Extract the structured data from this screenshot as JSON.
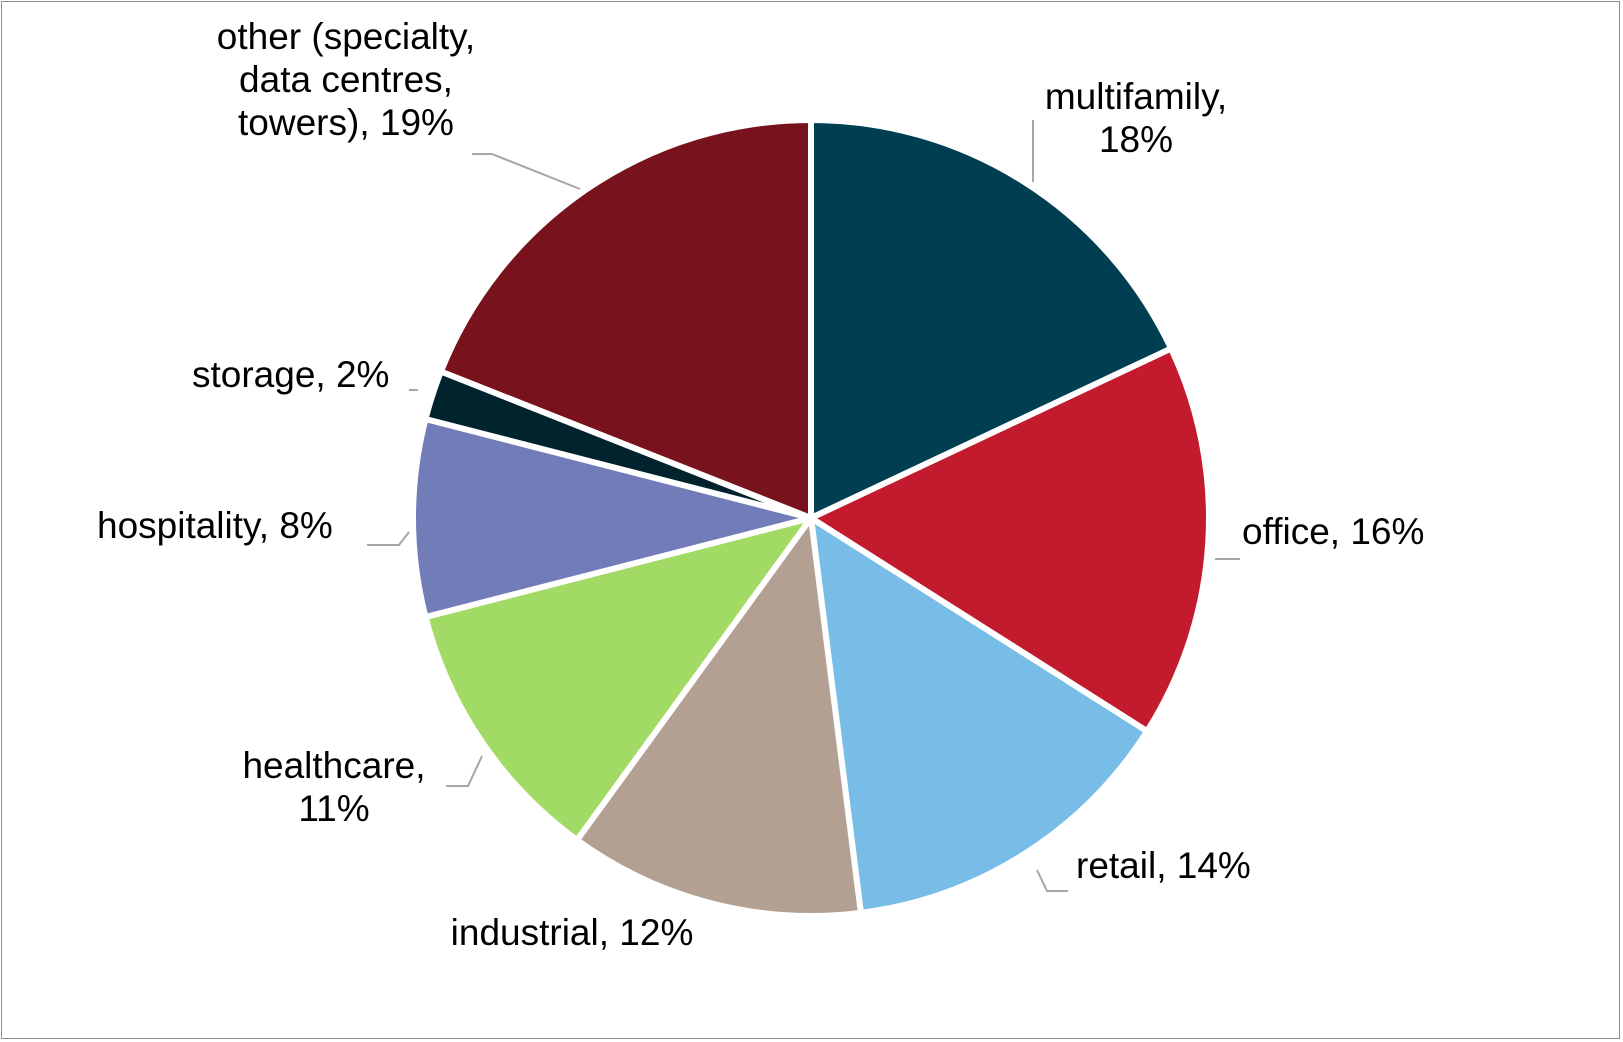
{
  "chart_data": {
    "type": "pie",
    "start_angle_deg": 0,
    "direction": "clockwise",
    "slices": [
      {
        "name": "multifamily",
        "label_lines": [
          "multifamily,",
          "18%"
        ],
        "value": 18,
        "color": "#003f52"
      },
      {
        "name": "office",
        "label_lines": [
          "office, 16%"
        ],
        "value": 16,
        "color": "#c21b2e"
      },
      {
        "name": "retail",
        "label_lines": [
          "retail, 14%"
        ],
        "value": 14,
        "color": "#78bde8"
      },
      {
        "name": "industrial",
        "label_lines": [
          "industrial, 12%"
        ],
        "value": 12,
        "color": "#b3a093"
      },
      {
        "name": "healthcare",
        "label_lines": [
          "healthcare,",
          "11%"
        ],
        "value": 11,
        "color": "#a1da64"
      },
      {
        "name": "hospitality",
        "label_lines": [
          "hospitality,  8%"
        ],
        "value": 8,
        "color": "#727cb9"
      },
      {
        "name": "storage",
        "label_lines": [
          "storage, 2%"
        ],
        "value": 2,
        "color": "#00232e"
      },
      {
        "name": "other (specialty, data centres, towers)",
        "label_lines": [
          "other (specialty,",
          "data centres,",
          "towers), 19%"
        ],
        "value": 19,
        "color": "#78121c"
      }
    ]
  }
}
